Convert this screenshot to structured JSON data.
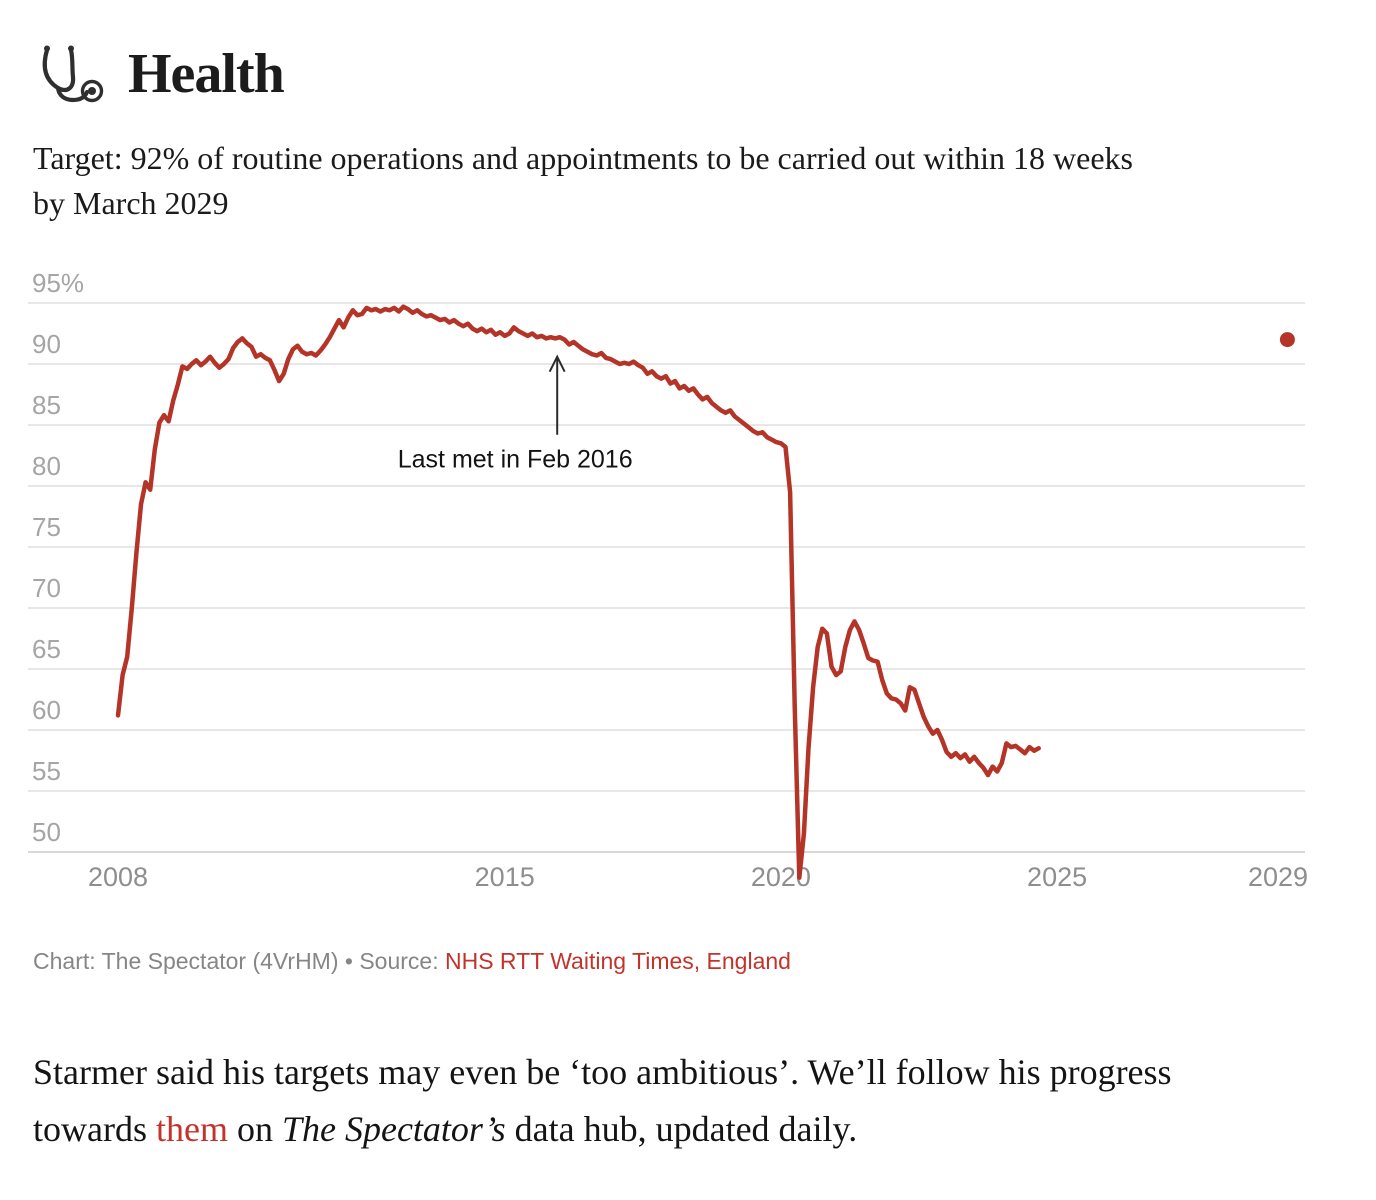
{
  "header": {
    "icon": "stethoscope-icon",
    "title": "Health"
  },
  "subtitle": {
    "line1": "Target: 92% of routine operations and appointments to be carried out within 18 weeks",
    "line2": "by March 2029"
  },
  "chart_data": {
    "type": "line",
    "title": "",
    "x_axis": {
      "label": "",
      "ticks": [
        {
          "value": 2008,
          "label": "2008"
        },
        {
          "value": 2015,
          "label": "2015"
        },
        {
          "value": 2020,
          "label": "2020"
        },
        {
          "value": 2025,
          "label": "2025"
        },
        {
          "value": 2029,
          "label": "2029"
        }
      ],
      "range": [
        2008,
        2029.6
      ]
    },
    "y_axis": {
      "label": "",
      "unit": "%",
      "grid": true,
      "range": [
        47,
        96
      ],
      "ticks": [
        {
          "value": 95,
          "label": "95%"
        },
        {
          "value": 90,
          "label": "90"
        },
        {
          "value": 85,
          "label": "85"
        },
        {
          "value": 80,
          "label": "80"
        },
        {
          "value": 75,
          "label": "75"
        },
        {
          "value": 70,
          "label": "70"
        },
        {
          "value": 65,
          "label": "65"
        },
        {
          "value": 60,
          "label": "60"
        },
        {
          "value": 55,
          "label": "55"
        },
        {
          "value": 50,
          "label": "50"
        }
      ]
    },
    "series": [
      {
        "name": "Routine operations and appointments carried out within 18 weeks (%)",
        "start_year": 2008,
        "start_month": 1,
        "frequency": "monthly",
        "values": [
          61.2,
          64.5,
          66.0,
          70.0,
          74.5,
          78.5,
          80.3,
          79.7,
          83.0,
          85.2,
          85.8,
          85.3,
          87.0,
          88.3,
          89.8,
          89.6,
          90.0,
          90.3,
          89.9,
          90.2,
          90.6,
          90.1,
          89.7,
          90.0,
          90.4,
          91.3,
          91.8,
          92.1,
          91.7,
          91.4,
          90.6,
          90.8,
          90.5,
          90.3,
          89.5,
          88.6,
          89.2,
          90.4,
          91.2,
          91.5,
          91.0,
          90.8,
          90.9,
          90.7,
          91.1,
          91.6,
          92.2,
          92.9,
          93.6,
          93.0,
          93.8,
          94.4,
          94.0,
          94.1,
          94.6,
          94.4,
          94.5,
          94.3,
          94.5,
          94.4,
          94.6,
          94.3,
          94.7,
          94.5,
          94.2,
          94.4,
          94.1,
          93.9,
          94.0,
          93.8,
          93.6,
          93.7,
          93.4,
          93.6,
          93.3,
          93.1,
          93.3,
          92.9,
          92.7,
          92.9,
          92.6,
          92.8,
          92.4,
          92.6,
          92.3,
          92.5,
          93.0,
          92.7,
          92.5,
          92.3,
          92.5,
          92.2,
          92.3,
          92.1,
          92.2,
          92.1,
          92.2,
          92.0,
          91.6,
          91.8,
          91.5,
          91.2,
          91.0,
          90.8,
          90.7,
          90.9,
          90.5,
          90.4,
          90.2,
          90.0,
          90.1,
          90.0,
          90.2,
          89.9,
          89.7,
          89.2,
          89.4,
          89.0,
          88.8,
          89.0,
          88.4,
          88.6,
          88.0,
          88.2,
          87.8,
          88.0,
          87.5,
          87.1,
          87.3,
          86.8,
          86.5,
          86.2,
          86.0,
          86.2,
          85.7,
          85.4,
          85.1,
          84.8,
          84.5,
          84.3,
          84.4,
          84.0,
          83.8,
          83.6,
          83.5,
          83.2,
          79.5,
          62.0,
          47.9,
          51.5,
          58.5,
          63.5,
          66.8,
          68.3,
          67.9,
          65.2,
          64.5,
          64.8,
          66.8,
          68.2,
          68.9,
          68.2,
          67.1,
          65.9,
          65.7,
          65.6,
          64.1,
          63.0,
          62.6,
          62.5,
          62.2,
          61.6,
          63.5,
          63.3,
          62.2,
          61.1,
          60.3,
          59.7,
          60.0,
          59.2,
          58.2,
          57.8,
          58.1,
          57.7,
          58.0,
          57.4,
          57.8,
          57.3,
          56.9,
          56.3,
          57.0,
          56.6,
          57.3,
          58.9,
          58.6,
          58.7,
          58.4,
          58.1,
          58.6,
          58.3,
          58.5
        ]
      }
    ],
    "target_point": {
      "year_decimal": 2029.17,
      "value": 92
    },
    "annotation": {
      "text": "Last met in Feb 2016",
      "arrow_x_year": 2015.95,
      "arrow_from_value": 84.2,
      "arrow_to_value": 90.6,
      "text_x_year": 2015.19,
      "text_value": 81.5
    },
    "legend": "none",
    "colors": {
      "line": "#b43428",
      "target_dot": "#b43428",
      "grid": "#e7e7e7",
      "baseline": "#d9d9d9",
      "y_tick_label": "#a5a5a5",
      "x_tick_label": "#8e8e8e",
      "annotation_text": "#131313",
      "arrow": "#2b2b2b"
    }
  },
  "caption": {
    "prefix": "Chart: The Spectator (4VrHM) • Source: ",
    "source_link": "NHS RTT Waiting Times, England"
  },
  "body": {
    "line1": "Starmer said his targets may even be ‘too ambitious’. We’ll follow his progress",
    "line2_part1": "towards ",
    "line2_link": "them",
    "line2_part2": " on ",
    "line2_italic": "The Spectator’s",
    "line2_part3": " data hub, updated daily."
  }
}
